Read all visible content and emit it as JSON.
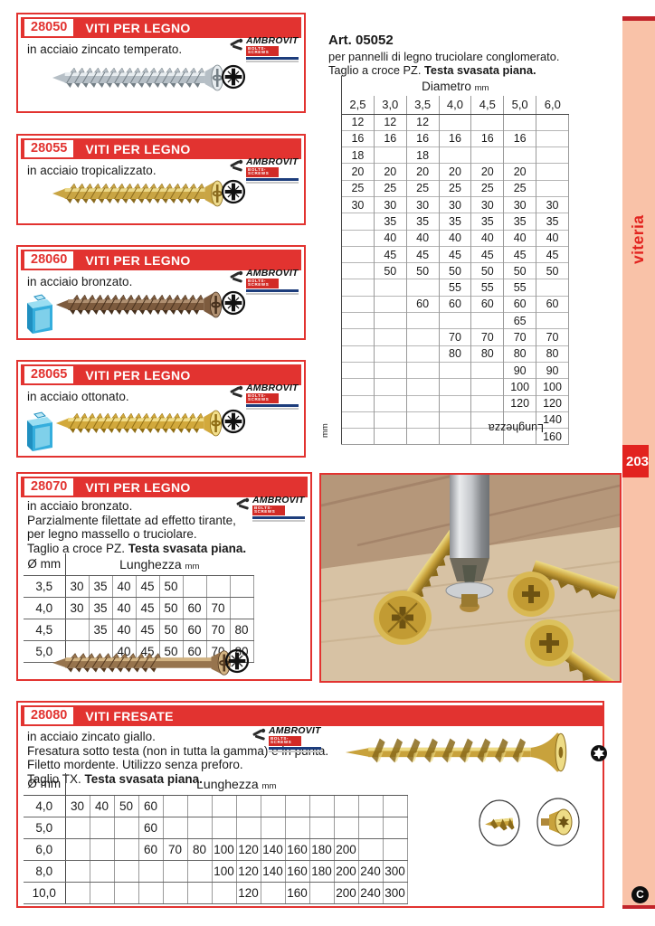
{
  "brand": {
    "name": "AMBROVIT",
    "tagline": "BOLTS-SCREWS"
  },
  "sidebar": {
    "label": "viteria",
    "page_number": "203",
    "footer_mark": "C"
  },
  "art_block": {
    "title": "Art. 05052",
    "line1": "per pannelli di legno truciolare conglomerato.",
    "line2_plain": "Taglio a croce PZ. ",
    "line2_bold": "Testa svasata piana."
  },
  "size_table": {
    "col_group": "Diametro",
    "col_group_unit": "mm",
    "row_group": "Lunghezza",
    "row_group_unit": "mm",
    "cols": [
      "2,5",
      "3,0",
      "3,5",
      "4,0",
      "4,5",
      "5,0",
      "6,0"
    ],
    "rows": [
      [
        "12",
        "12",
        "12",
        "",
        "",
        "",
        ""
      ],
      [
        "16",
        "16",
        "16",
        "16",
        "16",
        "16",
        ""
      ],
      [
        "18",
        "",
        "18",
        "",
        "",
        "",
        ""
      ],
      [
        "20",
        "20",
        "20",
        "20",
        "20",
        "20",
        ""
      ],
      [
        "25",
        "25",
        "25",
        "25",
        "25",
        "25",
        ""
      ],
      [
        "30",
        "30",
        "30",
        "30",
        "30",
        "30",
        "30"
      ],
      [
        "",
        "35",
        "35",
        "35",
        "35",
        "35",
        "35"
      ],
      [
        "",
        "40",
        "40",
        "40",
        "40",
        "40",
        "40"
      ],
      [
        "",
        "45",
        "45",
        "45",
        "45",
        "45",
        "45"
      ],
      [
        "",
        "50",
        "50",
        "50",
        "50",
        "50",
        "50"
      ],
      [
        "",
        "",
        "",
        "55",
        "55",
        "55",
        ""
      ],
      [
        "",
        "",
        "60",
        "60",
        "60",
        "60",
        "60"
      ],
      [
        "",
        "",
        "",
        "",
        "",
        "65",
        ""
      ],
      [
        "",
        "",
        "",
        "70",
        "70",
        "70",
        "70"
      ],
      [
        "",
        "",
        "",
        "80",
        "80",
        "80",
        "80"
      ],
      [
        "",
        "",
        "",
        "",
        "",
        "90",
        "90"
      ],
      [
        "",
        "",
        "",
        "",
        "",
        "100",
        "100"
      ],
      [
        "",
        "",
        "",
        "",
        "",
        "120",
        "120"
      ],
      [
        "",
        "",
        "",
        "",
        "",
        "",
        "140"
      ],
      [
        "",
        "",
        "",
        "",
        "",
        "",
        "160"
      ]
    ]
  },
  "products": [
    {
      "code": "28050",
      "title": "VITI PER LEGNO",
      "lines": [
        "in acciaio zincato temperato."
      ],
      "screw": {
        "light": "#e8edf0",
        "mid": "#b6bfc6",
        "dark": "#737e85",
        "style": "full"
      }
    },
    {
      "code": "28055",
      "title": "VITI PER LEGNO",
      "lines": [
        "in acciaio tropicalizzato."
      ],
      "screw": {
        "light": "#ecd98a",
        "mid": "#c9a544",
        "dark": "#8a6a1e",
        "style": "full"
      }
    },
    {
      "code": "28060",
      "title": "VITI PER LEGNO",
      "lines": [
        "in acciaio bronzato."
      ],
      "screw": {
        "light": "#b09071",
        "mid": "#7d5b3e",
        "dark": "#46301d",
        "style": "full"
      }
    },
    {
      "code": "28065",
      "title": "VITI PER LEGNO",
      "lines": [
        "in acciaio ottonato."
      ],
      "screw": {
        "light": "#f2de8a",
        "mid": "#d2a93c",
        "dark": "#8f6d14",
        "style": "full"
      }
    },
    {
      "code": "28070",
      "title": "VITI PER LEGNO",
      "lines": [
        "in acciaio bronzato.",
        "Parzialmente filettate ad effetto tirante,",
        "per legno massello o truciolare."
      ],
      "last_plain": "Taglio a croce PZ. ",
      "last_bold": "Testa svasata piana.",
      "screw": {
        "light": "#d3b483",
        "mid": "#97744d",
        "dark": "#54391f",
        "style": "partial"
      }
    },
    {
      "code": "28080",
      "title": "VITI FRESATE",
      "lines": [
        "in acciaio zincato giallo.",
        "Fresatura sotto testa (non in tutta la gamma) e in punta.",
        "Filetto mordente. Utilizzo senza preforo."
      ],
      "last_plain": "Taglio TX. ",
      "last_bold": "Testa svasata piana.",
      "screw": {
        "light": "#eedc86",
        "mid": "#c8a23c",
        "dark": "#8a6a1a",
        "style": "long"
      }
    }
  ],
  "table_28070": {
    "diam_label": "Ø mm",
    "len_label": "Lunghezza",
    "len_unit": "mm",
    "rows": [
      {
        "d": "3,5",
        "v": [
          "30",
          "35",
          "40",
          "45",
          "50",
          "",
          "",
          ""
        ]
      },
      {
        "d": "4,0",
        "v": [
          "30",
          "35",
          "40",
          "45",
          "50",
          "60",
          "70",
          ""
        ]
      },
      {
        "d": "4,5",
        "v": [
          "",
          "35",
          "40",
          "45",
          "50",
          "60",
          "70",
          "80"
        ]
      },
      {
        "d": "5,0",
        "v": [
          "",
          "",
          "40",
          "45",
          "50",
          "60",
          "70",
          "80"
        ]
      }
    ]
  },
  "table_28080": {
    "diam_label": "Ø mm",
    "len_label": "Lunghezza",
    "len_unit": "mm",
    "rows": [
      {
        "d": "4,0",
        "v": [
          "30",
          "40",
          "50",
          "60",
          "",
          "",
          "",
          "",
          "",
          "",
          "",
          "",
          "",
          ""
        ]
      },
      {
        "d": "5,0",
        "v": [
          "",
          "",
          "",
          "60",
          "",
          "",
          "",
          "",
          "",
          "",
          "",
          "",
          "",
          ""
        ]
      },
      {
        "d": "6,0",
        "v": [
          "",
          "",
          "",
          "60",
          "70",
          "80",
          "100",
          "120",
          "140",
          "160",
          "180",
          "200",
          "",
          ""
        ]
      },
      {
        "d": "8,0",
        "v": [
          "",
          "",
          "",
          "",
          "",
          "",
          "100",
          "120",
          "140",
          "160",
          "180",
          "200",
          "240",
          "300"
        ]
      },
      {
        "d": "10,0",
        "v": [
          "",
          "",
          "",
          "",
          "",
          "",
          "",
          "120",
          "",
          "160",
          "",
          "200",
          "240",
          "300"
        ]
      }
    ]
  }
}
